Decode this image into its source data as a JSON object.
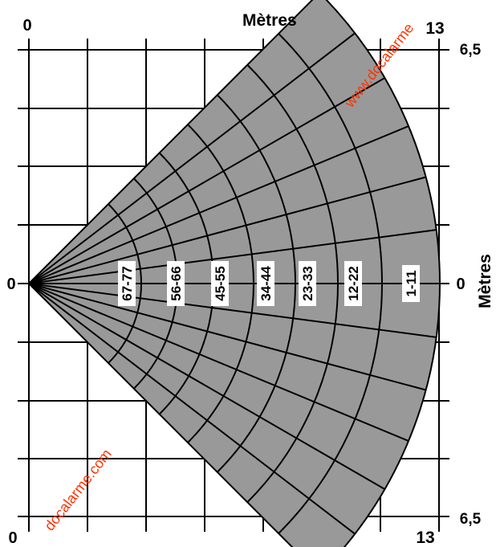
{
  "axes": {
    "top_label": "Mètres",
    "right_label": "Mètres",
    "top_left_value": "0",
    "top_right_value": "13",
    "bottom_left_value": "0",
    "bottom_right_value": "13",
    "left_mid_value": "0",
    "right_mid_value": "0",
    "right_top_value": "6,5",
    "right_bottom_value": "6,5"
  },
  "zones": [
    "67-77",
    "56-66",
    "45-55",
    "34-44",
    "23-33",
    "12-22",
    "1-11"
  ],
  "watermark": {
    "upper": "www.docalarme",
    "lower": "docalarme.com"
  },
  "colors": {
    "fan_fill": "#999999",
    "line": "#000000",
    "watermark": "#ff3300"
  }
}
